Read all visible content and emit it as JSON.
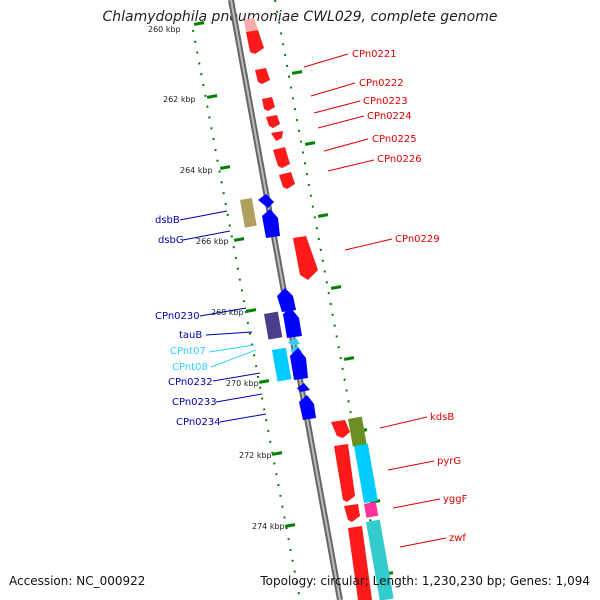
{
  "title": "Chlamydophila pneumoniae CWL029, complete genome",
  "footer": {
    "accession": "Accession: NC_000922",
    "summary": "Topology: circular; Length: 1,230,230 bp; Genes: 1,094"
  },
  "scale": {
    "ticks": [
      "260 kbp",
      "262 kbp",
      "264 kbp",
      "266 kbp",
      "268 kbp",
      "270 kbp",
      "272 kbp",
      "274 kbp"
    ]
  },
  "genes": {
    "forward": [
      "CPn0221",
      "CPn0222",
      "CPn0223",
      "CPn0224",
      "CPn0225",
      "CPn0226",
      "CPn0229",
      "kdsB",
      "pyrG",
      "yggF",
      "zwf"
    ],
    "reverse": [
      "dsbB",
      "dsbG",
      "CPn0230",
      "tauB",
      "CPnt07",
      "CPnt08",
      "CPn0232",
      "CPn0233",
      "CPn0234"
    ]
  },
  "colors": {
    "forward_cds": "#ff0000",
    "reverse_cds": "#0000ff",
    "trna": "#33ccff",
    "backbone": "#888888",
    "tick": "#008000",
    "forward_label": "#dd0000",
    "reverse_label": "#0000aa"
  }
}
